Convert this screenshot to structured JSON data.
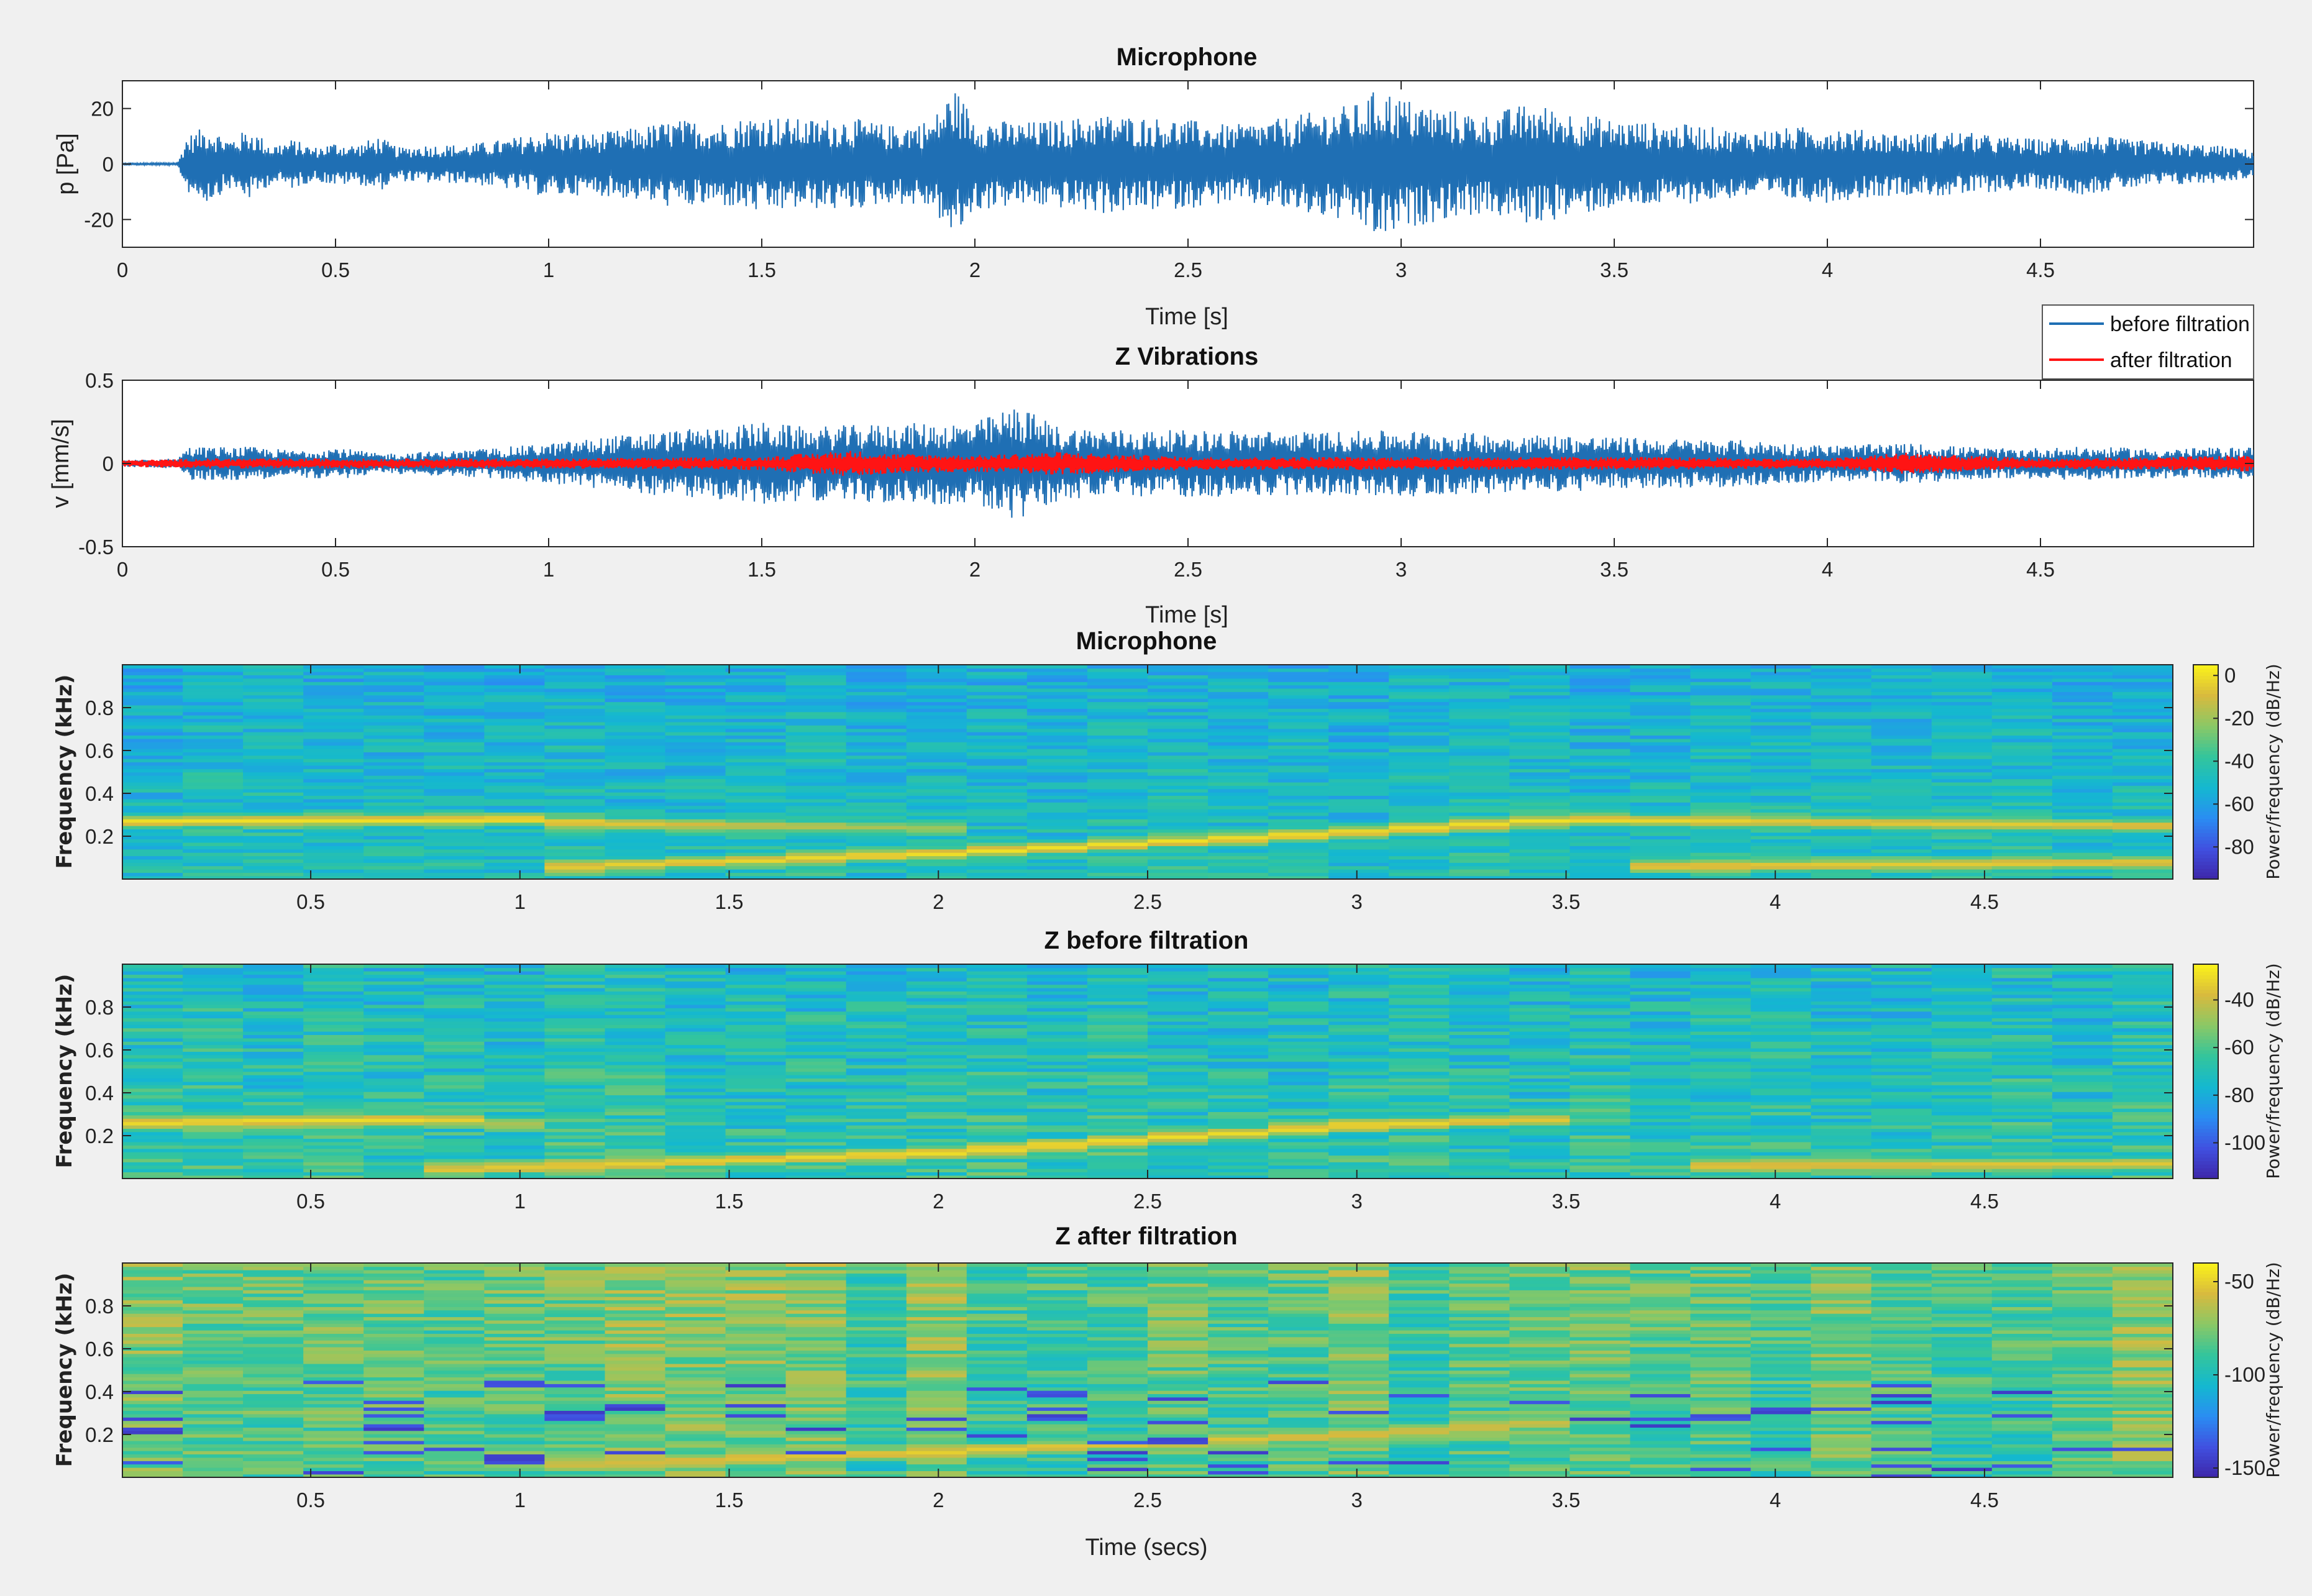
{
  "colors": {
    "figure_bg": "#f0f0f0",
    "axes_bg": "#ffffff",
    "before_filtration": "#1f6fb4",
    "after_filtration": "#ff1414",
    "colormap": [
      "#3e26a8",
      "#4050e0",
      "#2a8df2",
      "#14b8d0",
      "#33c59c",
      "#8ac866",
      "#d8ba3e",
      "#fbf31a"
    ]
  },
  "chart_data": [
    {
      "id": "mic",
      "type": "line",
      "title": "Microphone",
      "xlabel": "Time [s]",
      "ylabel": "p [Pa]",
      "xlim": [
        0,
        5
      ],
      "ylim": [
        -30,
        30
      ],
      "xticks": [
        0,
        0.5,
        1,
        1.5,
        2,
        2.5,
        3,
        3.5,
        4,
        4.5
      ],
      "xticklabels": [
        "0",
        "0.5",
        "1",
        "1.5",
        "2",
        "2.5",
        "3",
        "3.5",
        "4",
        "4.5"
      ],
      "yticks": [
        20,
        0,
        -20
      ],
      "yticklabels": [
        "20",
        "0",
        "-20"
      ],
      "series": [
        {
          "color_key": "before_filtration",
          "envelope": {
            "t": [
              0,
              0.13,
              0.15,
              0.2,
              0.25,
              0.3,
              0.35,
              0.4,
              0.45,
              0.5,
              0.55,
              0.6,
              0.65,
              0.7,
              0.8,
              0.9,
              1.0,
              1.1,
              1.2,
              1.3,
              1.4,
              1.5,
              1.6,
              1.7,
              1.8,
              1.9,
              1.95,
              2.0,
              2.1,
              2.2,
              2.3,
              2.4,
              2.5,
              2.6,
              2.7,
              2.8,
              2.9,
              2.95,
              3.0,
              3.1,
              3.2,
              3.3,
              3.4,
              3.5,
              3.6,
              3.7,
              3.8,
              3.9,
              4.0,
              4.1,
              4.2,
              4.3,
              4.4,
              4.5,
              4.6,
              4.7,
              4.8,
              4.9,
              5.0
            ],
            "amp": [
              0.3,
              0.5,
              10,
              14,
              9,
              13,
              7,
              9,
              6,
              8,
              7,
              10,
              6,
              7,
              7,
              9,
              12,
              11,
              13,
              16,
              15,
              18,
              16,
              17,
              14,
              16,
              28,
              17,
              15,
              16,
              18,
              17,
              16,
              14,
              16,
              19,
              22,
              28,
              24,
              20,
              18,
              22,
              19,
              16,
              15,
              14,
              12,
              13,
              14,
              12,
              11,
              12,
              10,
              9,
              11,
              9,
              8,
              7,
              5
            ]
          }
        }
      ]
    },
    {
      "id": "zvib",
      "type": "line",
      "title": "Z Vibrations",
      "xlabel": "Time [s]",
      "ylabel": "v [mm/s]",
      "xlim": [
        0,
        5
      ],
      "ylim": [
        -0.5,
        0.5
      ],
      "xticks": [
        0,
        0.5,
        1,
        1.5,
        2,
        2.5,
        3,
        3.5,
        4,
        4.5
      ],
      "xticklabels": [
        "0",
        "0.5",
        "1",
        "1.5",
        "2",
        "2.5",
        "3",
        "3.5",
        "4",
        "4.5"
      ],
      "yticks": [
        0.5,
        0,
        -0.5
      ],
      "yticklabels": [
        "0.5",
        "0",
        "-0.5"
      ],
      "legend": {
        "position": "top-right",
        "entries": [
          {
            "name": "before filtration",
            "color_key": "before_filtration"
          },
          {
            "name": "after filtration",
            "color_key": "after_filtration"
          }
        ]
      },
      "series": [
        {
          "name": "before filtration",
          "color_key": "before_filtration",
          "envelope": {
            "t": [
              0,
              0.13,
              0.15,
              0.3,
              0.4,
              0.5,
              0.6,
              0.8,
              0.9,
              1.0,
              1.2,
              1.4,
              1.5,
              1.6,
              1.8,
              2.0,
              2.1,
              2.2,
              2.4,
              2.6,
              2.8,
              3.0,
              3.2,
              3.4,
              3.6,
              3.8,
              4.0,
              4.2,
              4.4,
              4.6,
              4.8,
              5.0
            ],
            "amp": [
              0.02,
              0.03,
              0.1,
              0.1,
              0.08,
              0.1,
              0.06,
              0.08,
              0.1,
              0.12,
              0.18,
              0.22,
              0.25,
              0.22,
              0.24,
              0.25,
              0.35,
              0.22,
              0.2,
              0.2,
              0.19,
              0.2,
              0.18,
              0.17,
              0.15,
              0.14,
              0.11,
              0.12,
              0.09,
              0.1,
              0.09,
              0.1
            ]
          }
        },
        {
          "name": "after filtration",
          "color_key": "after_filtration",
          "envelope": {
            "t": [
              0,
              0.2,
              0.5,
              1.0,
              1.5,
              1.7,
              1.8,
              2.0,
              2.2,
              2.5,
              3.0,
              3.5,
              4.0,
              4.2,
              4.3,
              4.5,
              4.8,
              5.0
            ],
            "amp": [
              0.02,
              0.03,
              0.03,
              0.03,
              0.04,
              0.08,
              0.06,
              0.05,
              0.07,
              0.04,
              0.04,
              0.04,
              0.03,
              0.07,
              0.05,
              0.03,
              0.04,
              0.05
            ]
          }
        }
      ]
    },
    {
      "id": "spec_mic",
      "type": "heatmap",
      "title": "Microphone",
      "xlabel": "",
      "ylabel": "Frequency (kHz)",
      "xlim": [
        0.05,
        4.95
      ],
      "ylim": [
        0,
        1
      ],
      "xticks": [
        0.5,
        1,
        1.5,
        2,
        2.5,
        3,
        3.5,
        4,
        4.5
      ],
      "xticklabels": [
        "0.5",
        "1",
        "1.5",
        "2",
        "2.5",
        "3",
        "3.5",
        "4",
        "4.5"
      ],
      "yticks": [
        0.8,
        0.6,
        0.4,
        0.2
      ],
      "yticklabels": [
        "0.8",
        "0.6",
        "0.4",
        "0.2"
      ],
      "colorbar": {
        "label": "Power/frequency (dB/Hz)",
        "range": [
          -95,
          5
        ],
        "ticks": [
          0,
          -20,
          -40,
          -60,
          -80
        ],
        "ticklabels": [
          "0",
          "-20",
          "-40",
          "-60",
          "-80"
        ]
      },
      "ridges": [
        {
          "t": [
            0.05,
            1.0,
            1.2,
            2.0
          ],
          "f_khz": [
            0.27,
            0.28,
            0.26,
            0.24
          ],
          "level_db": [
            0,
            0,
            -5,
            -20
          ]
        },
        {
          "t": [
            1.0,
            2.0,
            3.0,
            3.5,
            4.0,
            4.9
          ],
          "f_khz": [
            0.05,
            0.12,
            0.22,
            0.28,
            0.27,
            0.25
          ],
          "level_db": [
            -5,
            0,
            0,
            0,
            -5,
            -5
          ]
        },
        {
          "t": [
            3.7,
            4.9
          ],
          "f_khz": [
            0.06,
            0.08
          ],
          "level_db": [
            -5,
            -5
          ]
        }
      ],
      "background_db": -45
    },
    {
      "id": "spec_zb",
      "type": "heatmap",
      "title": "Z before filtration",
      "xlabel": "",
      "ylabel": "Frequency (kHz)",
      "xlim": [
        0.05,
        4.95
      ],
      "ylim": [
        0,
        1
      ],
      "xticks": [
        0.5,
        1,
        1.5,
        2,
        2.5,
        3,
        3.5,
        4,
        4.5
      ],
      "xticklabels": [
        "0.5",
        "1",
        "1.5",
        "2",
        "2.5",
        "3",
        "3.5",
        "4",
        "4.5"
      ],
      "yticks": [
        0.8,
        0.6,
        0.4,
        0.2
      ],
      "yticklabels": [
        "0.8",
        "0.6",
        "0.4",
        "0.2"
      ],
      "colorbar": {
        "label": "Power/frequency (dB/Hz)",
        "range": [
          -115,
          -25
        ],
        "ticks": [
          -40,
          -60,
          -80,
          -100
        ],
        "ticklabels": [
          "-40",
          "-60",
          "-80",
          "-100"
        ]
      },
      "ridges": [
        {
          "t": [
            0.05,
            0.8,
            1.0
          ],
          "f_khz": [
            0.26,
            0.28,
            0.25
          ],
          "level_db": [
            -30,
            -30,
            -45
          ]
        },
        {
          "t": [
            0.8,
            2.0,
            3.0,
            3.5
          ],
          "f_khz": [
            0.04,
            0.12,
            0.25,
            0.28
          ],
          "level_db": [
            -35,
            -30,
            -30,
            -35
          ]
        },
        {
          "t": [
            3.8,
            4.9
          ],
          "f_khz": [
            0.06,
            0.07
          ],
          "level_db": [
            -35,
            -35
          ]
        }
      ],
      "background_db": -65
    },
    {
      "id": "spec_za",
      "type": "heatmap",
      "title": "Z after filtration",
      "xlabel": "Time (secs)",
      "ylabel": "Frequency (kHz)",
      "xlim": [
        0.05,
        4.95
      ],
      "ylim": [
        0,
        1
      ],
      "xticks": [
        0.5,
        1,
        1.5,
        2,
        2.5,
        3,
        3.5,
        4,
        4.5
      ],
      "xticklabels": [
        "0.5",
        "1",
        "1.5",
        "2",
        "2.5",
        "3",
        "3.5",
        "4",
        "4.5"
      ],
      "yticks": [
        0.8,
        0.6,
        0.4,
        0.2
      ],
      "yticklabels": [
        "0.8",
        "0.6",
        "0.4",
        "0.2"
      ],
      "colorbar": {
        "label": "Power/frequency (dB/Hz)",
        "range": [
          -155,
          -40
        ],
        "ticks": [
          -50,
          -100,
          -150
        ],
        "ticklabels": [
          "-50",
          "-100",
          "-150"
        ]
      },
      "ridges": [
        {
          "t": [
            1.0,
            2.0,
            3.0,
            3.5
          ],
          "f_khz": [
            0.05,
            0.12,
            0.2,
            0.26
          ],
          "level_db": [
            -60,
            -50,
            -55,
            -60
          ]
        }
      ],
      "background_db": -85
    }
  ]
}
